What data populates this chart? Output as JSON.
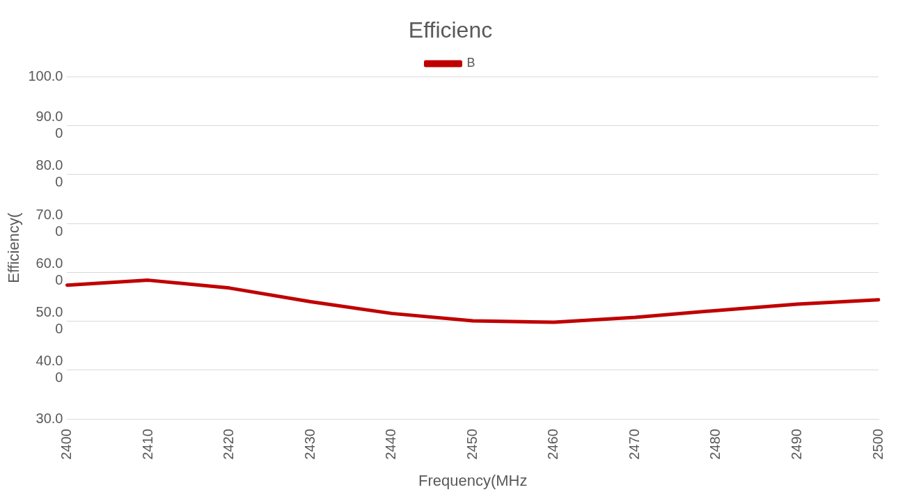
{
  "chart_data": {
    "type": "line",
    "title": "Efficienc",
    "xlabel": "Frequency(MHz",
    "ylabel": "Efficiency(",
    "categories": [
      "2400",
      "2410",
      "2420",
      "2430",
      "2440",
      "2450",
      "2460",
      "2470",
      "2480",
      "2490",
      "2500"
    ],
    "series": [
      {
        "name": "B",
        "color": "#c00000",
        "values": [
          57.4,
          58.4,
          56.8,
          54.0,
          51.6,
          50.1,
          49.8,
          50.8,
          52.2,
          53.5,
          54.4
        ]
      }
    ],
    "ylim": [
      30,
      100
    ],
    "yticks": [
      {
        "value": 30,
        "label": "30.0"
      },
      {
        "value": 40,
        "label": "40.00"
      },
      {
        "value": 50,
        "label": "50.00"
      },
      {
        "value": 60,
        "label": "60.00"
      },
      {
        "value": 70,
        "label": "70.00"
      },
      {
        "value": 80,
        "label": "80.00"
      },
      {
        "value": 90,
        "label": "90.00"
      },
      {
        "value": 100,
        "label": "100.0"
      }
    ],
    "grid": "y",
    "legend": "top",
    "marker": "none",
    "line_style": "solid"
  }
}
